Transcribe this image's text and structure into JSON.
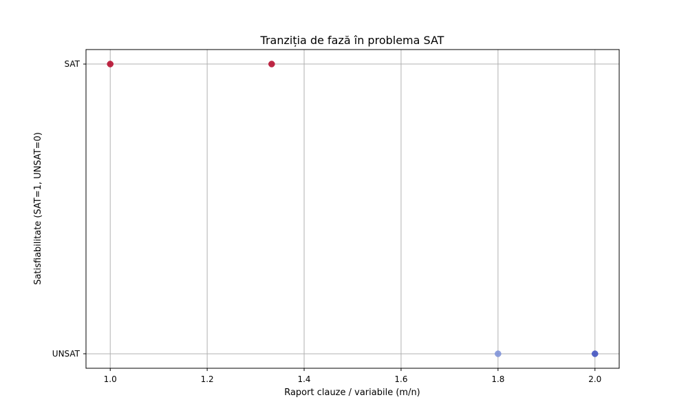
{
  "chart_data": {
    "type": "scatter",
    "title": "Tranziția de fază în problema SAT",
    "xlabel": "Raport clauze / variabile (m/n)",
    "ylabel": "Satisfiabilitate (SAT=1, UNSAT=0)",
    "xlim": [
      0.95,
      2.05
    ],
    "ylim": [
      -0.05,
      1.05
    ],
    "x_ticks": [
      {
        "value": 1.0,
        "label": "1.0"
      },
      {
        "value": 1.2,
        "label": "1.2"
      },
      {
        "value": 1.4,
        "label": "1.4"
      },
      {
        "value": 1.6,
        "label": "1.6"
      },
      {
        "value": 1.8,
        "label": "1.8"
      },
      {
        "value": 2.0,
        "label": "2.0"
      }
    ],
    "y_ticks": [
      {
        "value": 0,
        "label": "UNSAT"
      },
      {
        "value": 1,
        "label": "SAT"
      }
    ],
    "grid": true,
    "points": [
      {
        "x": 1.0,
        "y": 1,
        "color": "#b40426"
      },
      {
        "x": 1.333,
        "y": 1,
        "color": "#b40426"
      },
      {
        "x": 1.8,
        "y": 0,
        "color": "#7b8fd8"
      },
      {
        "x": 2.0,
        "y": 0,
        "color": "#3b4cc0"
      }
    ]
  }
}
